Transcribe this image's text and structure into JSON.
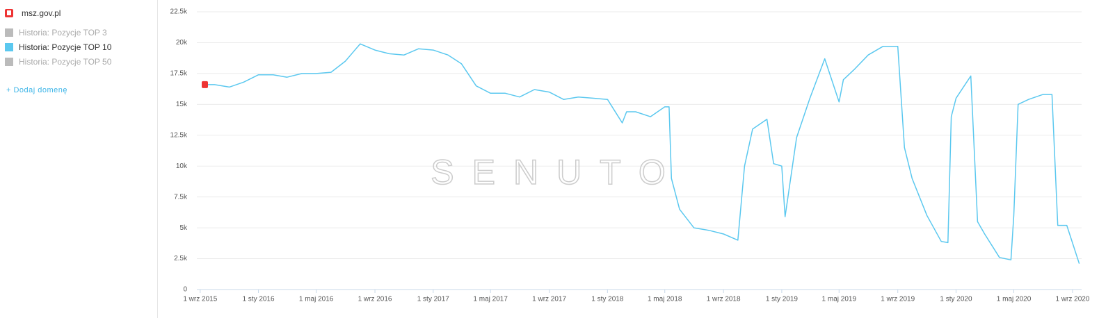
{
  "sidebar": {
    "domain": "msz.gov.pl",
    "items": [
      {
        "label": "Historia: Pozycje TOP 3",
        "color": "#bbbbbb",
        "active": false
      },
      {
        "label": "Historia: Pozycje TOP 10",
        "color": "#5bc8ef",
        "active": true
      },
      {
        "label": "Historia: Pozycje TOP 50",
        "color": "#bbbbbb",
        "active": false
      }
    ],
    "add_link": "+ Dodaj domenę"
  },
  "chart_data": {
    "type": "line",
    "watermark": "SENUTO",
    "grid": true,
    "x": [
      "2015-09-05",
      "2015-10-01",
      "2015-11-01",
      "2015-12-01",
      "2016-01-01",
      "2016-02-01",
      "2016-03-01",
      "2016-04-01",
      "2016-05-01",
      "2016-06-01",
      "2016-07-01",
      "2016-08-01",
      "2016-09-01",
      "2016-10-01",
      "2016-11-01",
      "2016-12-01",
      "2017-01-01",
      "2017-02-01",
      "2017-03-01",
      "2017-04-01",
      "2017-05-01",
      "2017-06-01",
      "2017-07-01",
      "2017-08-01",
      "2017-09-01",
      "2017-10-01",
      "2017-11-01",
      "2017-12-01",
      "2018-01-01",
      "2018-02-01",
      "2018-02-10",
      "2018-03-01",
      "2018-04-01",
      "2018-05-01",
      "2018-05-10",
      "2018-05-15",
      "2018-06-01",
      "2018-07-01",
      "2018-08-01",
      "2018-09-01",
      "2018-10-01",
      "2018-10-15",
      "2018-11-01",
      "2018-12-01",
      "2018-12-15",
      "2019-01-01",
      "2019-01-08",
      "2019-02-01",
      "2019-03-01",
      "2019-04-01",
      "2019-05-01",
      "2019-05-10",
      "2019-06-01",
      "2019-07-01",
      "2019-08-01",
      "2019-09-01",
      "2019-09-15",
      "2019-10-01",
      "2019-11-01",
      "2019-12-01",
      "2019-12-15",
      "2019-12-22",
      "2020-01-01",
      "2020-02-01",
      "2020-02-15",
      "2020-03-01",
      "2020-04-01",
      "2020-04-25",
      "2020-05-01",
      "2020-05-10",
      "2020-06-01",
      "2020-07-01",
      "2020-07-20",
      "2020-08-01",
      "2020-08-20",
      "2020-09-15"
    ],
    "series": [
      {
        "name": "Historia: Pozycje TOP 10",
        "color": "#5bc8ef",
        "values": [
          16.6,
          16.6,
          16.4,
          16.8,
          17.4,
          17.4,
          17.2,
          17.5,
          17.5,
          17.6,
          18.5,
          19.9,
          19.4,
          19.1,
          19.0,
          19.5,
          19.4,
          19.0,
          18.3,
          16.5,
          15.9,
          15.9,
          15.6,
          16.2,
          16.0,
          15.4,
          15.6,
          15.5,
          15.4,
          13.5,
          14.4,
          14.4,
          14.0,
          14.8,
          14.8,
          9.0,
          6.5,
          5.0,
          4.8,
          4.5,
          4.0,
          10.0,
          13.0,
          13.8,
          10.2,
          10.0,
          5.9,
          12.3,
          15.5,
          18.7,
          15.2,
          17.0,
          17.8,
          19.0,
          19.7,
          19.7,
          11.5,
          9.0,
          6.0,
          3.9,
          3.8,
          14.0,
          15.5,
          17.3,
          5.5,
          4.5,
          2.6,
          2.4,
          6.0,
          15.0,
          15.4,
          15.8,
          15.8,
          5.2,
          5.2,
          2.1
        ]
      }
    ],
    "xlim": [
      "2015-08-25",
      "2020-09-20"
    ],
    "xticks": [
      {
        "value": "2015-09-01",
        "label": "1 wrz 2015"
      },
      {
        "value": "2016-01-01",
        "label": "1 sty 2016"
      },
      {
        "value": "2016-05-01",
        "label": "1 maj 2016"
      },
      {
        "value": "2016-09-01",
        "label": "1 wrz 2016"
      },
      {
        "value": "2017-01-01",
        "label": "1 sty 2017"
      },
      {
        "value": "2017-05-01",
        "label": "1 maj 2017"
      },
      {
        "value": "2017-09-01",
        "label": "1 wrz 2017"
      },
      {
        "value": "2018-01-01",
        "label": "1 sty 2018"
      },
      {
        "value": "2018-05-01",
        "label": "1 maj 2018"
      },
      {
        "value": "2018-09-01",
        "label": "1 wrz 2018"
      },
      {
        "value": "2019-01-01",
        "label": "1 sty 2019"
      },
      {
        "value": "2019-05-01",
        "label": "1 maj 2019"
      },
      {
        "value": "2019-09-01",
        "label": "1 wrz 2019"
      },
      {
        "value": "2020-01-01",
        "label": "1 sty 2020"
      },
      {
        "value": "2020-05-01",
        "label": "1 maj 2020"
      },
      {
        "value": "2020-09-01",
        "label": "1 wrz 2020"
      }
    ],
    "ylim": [
      0,
      22.5
    ],
    "yticks": [
      0,
      {
        "value": 2.5,
        "label": "2.5k"
      },
      {
        "value": 5,
        "label": "5k"
      },
      {
        "value": 7.5,
        "label": "7.5k"
      },
      {
        "value": 10,
        "label": "10k"
      },
      {
        "value": 12.5,
        "label": "12.5k"
      },
      {
        "value": 15,
        "label": "15k"
      },
      {
        "value": 17.5,
        "label": "17.5k"
      },
      {
        "value": 20,
        "label": "20k"
      },
      {
        "value": 22.5,
        "label": "22.5k"
      }
    ]
  }
}
